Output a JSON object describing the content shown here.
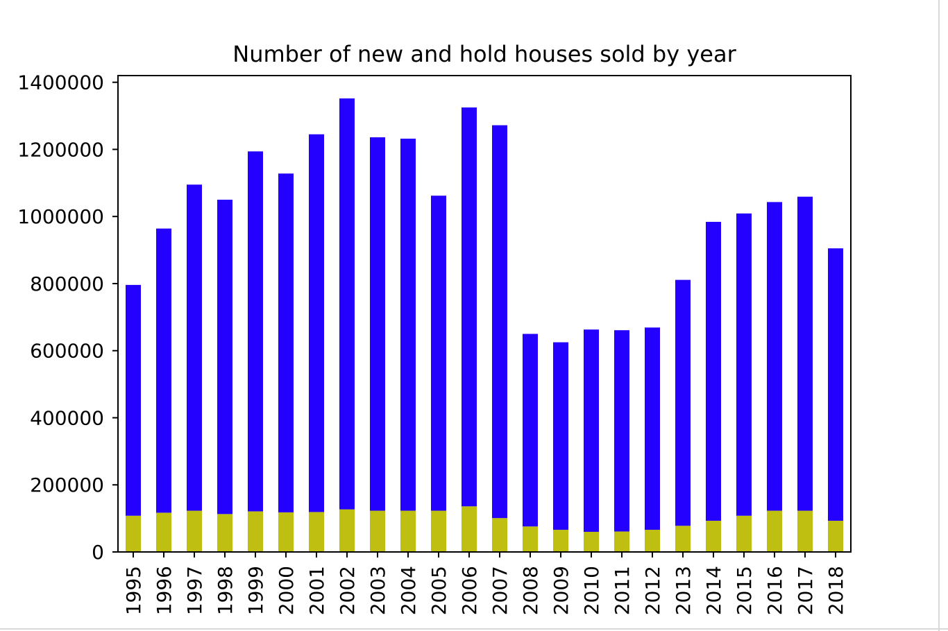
{
  "colors": {
    "new_series": "#bfbf12",
    "old_series": "#2400ff",
    "axis": "#000000",
    "background": "#ffffff"
  },
  "chart_data": {
    "type": "bar",
    "stacked": true,
    "title": "Number of new and hold houses sold by year",
    "xlabel": "",
    "ylabel": "",
    "ylim": [
      0,
      1420000
    ],
    "yticks": [
      0,
      200000,
      400000,
      600000,
      800000,
      1000000,
      1200000,
      1400000
    ],
    "ytick_labels": [
      "0",
      "200000",
      "400000",
      "600000",
      "800000",
      "1000000",
      "1200000",
      "1400000"
    ],
    "grid": false,
    "legend": "none",
    "categories": [
      "1995",
      "1996",
      "1997",
      "1998",
      "1999",
      "2000",
      "2001",
      "2002",
      "2003",
      "2004",
      "2005",
      "2006",
      "2007",
      "2008",
      "2009",
      "2010",
      "2011",
      "2012",
      "2013",
      "2014",
      "2015",
      "2016",
      "2017",
      "2018"
    ],
    "series": [
      {
        "color": "#bfbf12",
        "values": [
          108000,
          117000,
          123000,
          113000,
          121000,
          118000,
          119000,
          127000,
          123000,
          123000,
          123000,
          136000,
          101000,
          76000,
          66000,
          60000,
          61000,
          66000,
          78000,
          93000,
          108000,
          123000,
          123000,
          93000
        ]
      },
      {
        "color": "#2400ff",
        "values": [
          688000,
          847000,
          972000,
          937000,
          1073000,
          1010000,
          1126000,
          1225000,
          1113000,
          1109000,
          939000,
          1189000,
          1171000,
          574000,
          559000,
          603000,
          600000,
          603000,
          733000,
          891000,
          901000,
          920000,
          936000,
          812000
        ]
      }
    ]
  }
}
